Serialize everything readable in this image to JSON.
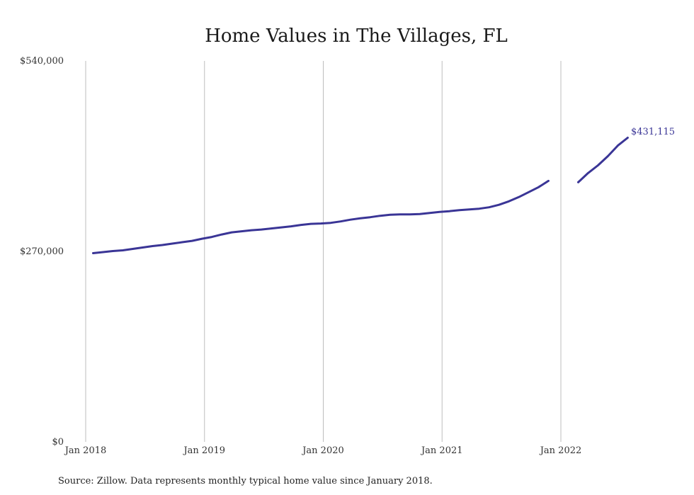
{
  "chart_data": {
    "type": "line",
    "title": "Home Values in The Villages, FL",
    "xlabel": "",
    "ylabel": "",
    "ylim": [
      0,
      540000
    ],
    "y_ticks": [
      "$540,000",
      "$270,000",
      "$0"
    ],
    "x_ticks": [
      "Jan 2018",
      "Jan 2019",
      "Jan 2020",
      "Jan 2021",
      "Jan 2022"
    ],
    "grid": "vertical",
    "line_color": "#3a3596",
    "end_label": "$431,115",
    "series": [
      {
        "x": [
          "2018-01",
          "2018-02",
          "2018-03",
          "2018-04",
          "2018-05",
          "2018-06",
          "2018-07",
          "2018-08",
          "2018-09",
          "2018-10",
          "2018-11",
          "2018-12",
          "2019-01",
          "2019-02",
          "2019-03",
          "2019-04",
          "2019-05",
          "2019-06",
          "2019-07",
          "2019-08",
          "2019-09",
          "2019-10",
          "2019-11",
          "2019-12",
          "2020-01",
          "2020-02",
          "2020-03",
          "2020-04",
          "2020-05",
          "2020-06",
          "2020-07",
          "2020-08",
          "2020-09",
          "2020-10",
          "2020-11",
          "2020-12",
          "2021-01",
          "2021-02",
          "2021-03",
          "2021-04",
          "2021-05",
          "2021-06",
          "2021-07",
          "2021-08",
          "2021-09",
          "2021-10",
          "2021-11",
          "2021-12",
          "2022-01",
          "2022-02",
          "2022-03",
          "2022-04",
          "2022-05",
          "2022-06",
          "2022-07"
        ],
        "values": [
          267500,
          269000,
          270500,
          271500,
          273500,
          275500,
          277500,
          279000,
          281000,
          283000,
          285000,
          288000,
          290500,
          294000,
          297000,
          298500,
          300000,
          301000,
          302500,
          304000,
          305500,
          307500,
          309000,
          309500,
          310500,
          312500,
          315000,
          317000,
          318500,
          320500,
          322000,
          322500,
          322500,
          323000,
          324500,
          326000,
          327000,
          328500,
          329500,
          330500,
          332500,
          336000,
          341000,
          347000,
          354000,
          361000,
          370000,
          null,
          null,
          368000,
          381000,
          392000,
          405000,
          420000,
          431115
        ]
      }
    ]
  },
  "source_note": "Source: Zillow. Data represents monthly typical home value since January 2018."
}
